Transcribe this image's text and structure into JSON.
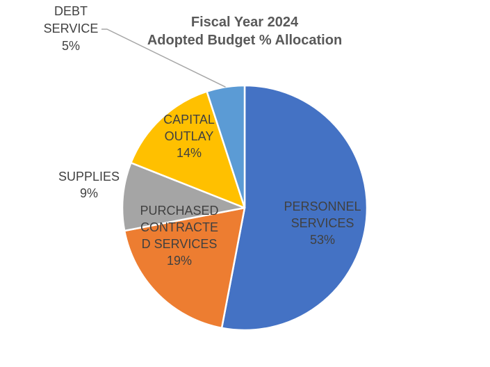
{
  "chart_data": {
    "type": "pie",
    "title": [
      "Fiscal Year 2024",
      "Adopted Budget % Allocation"
    ],
    "start_angle_deg": 0,
    "direction": "clockwise",
    "slices": [
      {
        "label": [
          "PERSONNEL",
          "SERVICES",
          "53%"
        ],
        "value": 53,
        "color": "#4472C4"
      },
      {
        "label": [
          "PURCHASED",
          "CONTRACTE",
          "D SERVICES",
          "19%"
        ],
        "value": 19,
        "color": "#ED7D31"
      },
      {
        "label": [
          "SUPPLIES",
          "9%"
        ],
        "value": 9,
        "color": "#A5A5A5"
      },
      {
        "label": [
          "CAPITAL",
          "OUTLAY",
          "14%"
        ],
        "value": 14,
        "color": "#FFC000"
      },
      {
        "label": [
          "DEBT",
          "SERVICE",
          "5%"
        ],
        "value": 5,
        "color": "#5B9BD5"
      }
    ]
  }
}
